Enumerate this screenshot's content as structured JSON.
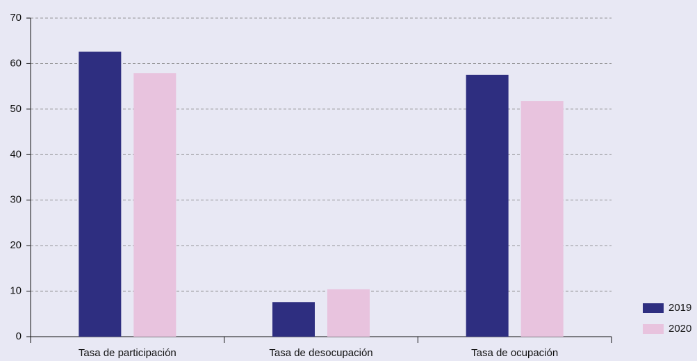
{
  "chart_data": {
    "type": "bar",
    "categories": [
      "Tasa de participación",
      "Tasa de desocupación",
      "Tasa de ocupación"
    ],
    "series": [
      {
        "name": "2019",
        "color": "#2e2e80",
        "values": [
          62.6,
          7.6,
          57.5
        ]
      },
      {
        "name": "2020",
        "color": "#e8c3de",
        "values": [
          57.9,
          10.4,
          51.8
        ]
      }
    ],
    "ylim": [
      0,
      70
    ],
    "yticks": [
      0,
      10,
      20,
      30,
      40,
      50,
      60,
      70
    ],
    "grid": true,
    "legend": "bottom-right"
  }
}
